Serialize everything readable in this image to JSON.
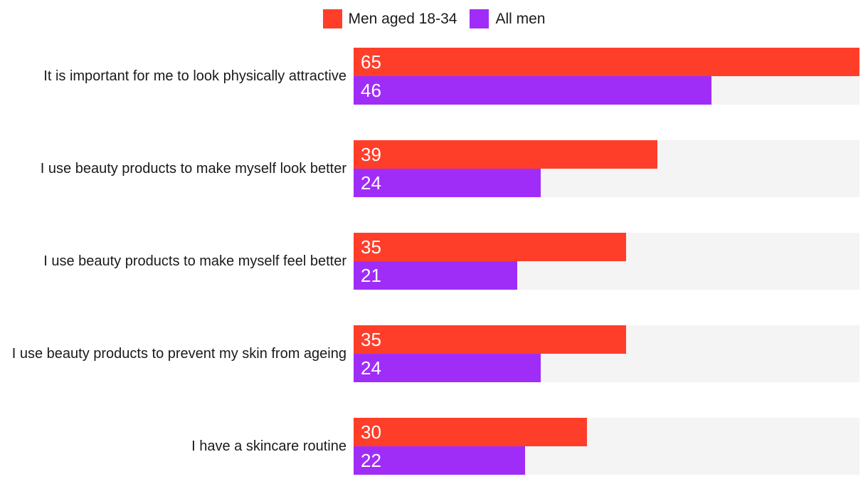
{
  "legend": [
    {
      "label": "Men aged 18-34",
      "color": "#ff3e2a"
    },
    {
      "label": "All men",
      "color": "#a02df7"
    }
  ],
  "chart_data": {
    "type": "bar",
    "orientation": "horizontal",
    "title": "",
    "xlabel": "",
    "ylabel": "",
    "xlim": [
      0,
      65
    ],
    "grid": false,
    "legend_position": "top-center",
    "value_labels": "inside-left",
    "track_color": "#f4f4f4",
    "categories": [
      "It is important for me to look physically attractive",
      "I use beauty products to make myself look better",
      "I use beauty products to make myself feel better",
      "I use beauty products to prevent my skin from ageing",
      "I have a skincare routine"
    ],
    "series": [
      {
        "name": "Men aged 18-34",
        "color": "#ff3e2a",
        "values": [
          65,
          39,
          35,
          35,
          30
        ]
      },
      {
        "name": "All men",
        "color": "#a02df7",
        "values": [
          46,
          24,
          21,
          24,
          22
        ]
      }
    ]
  }
}
